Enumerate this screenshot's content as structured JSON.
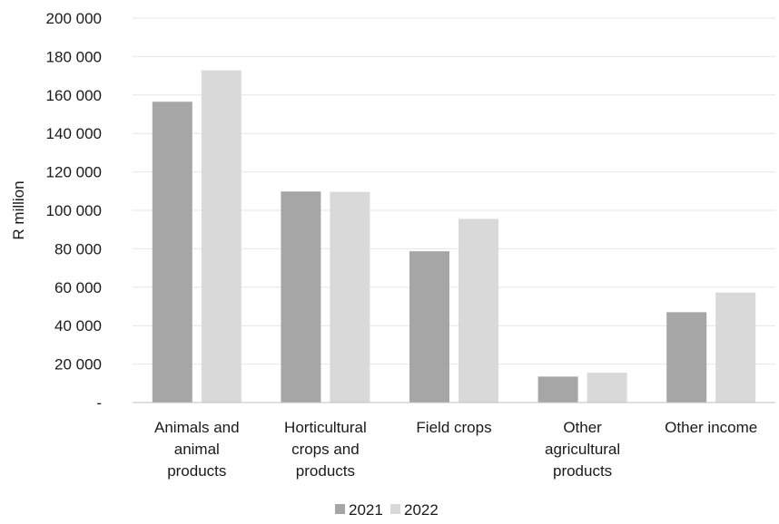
{
  "chart_data": {
    "type": "bar",
    "categories": [
      [
        "Animals and",
        "animal",
        "products"
      ],
      [
        "Horticultural",
        "crops and",
        "products"
      ],
      [
        "Field crops"
      ],
      [
        "Other",
        "agricultural",
        "products"
      ],
      [
        "Other income"
      ]
    ],
    "series": [
      {
        "name": "2021",
        "color": "#a6a6a6",
        "values": [
          156500,
          109800,
          78700,
          13500,
          47000
        ]
      },
      {
        "name": "2022",
        "color": "#d9d9d9",
        "values": [
          172800,
          109600,
          95500,
          15500,
          57200
        ]
      }
    ],
    "ylabel": "R million",
    "ylim": [
      0,
      200000
    ],
    "yticks": [
      0,
      20000,
      40000,
      60000,
      80000,
      100000,
      120000,
      140000,
      160000,
      180000,
      200000
    ],
    "ytick_labels": [
      "-",
      "20 000",
      "40 000",
      "60 000",
      "80 000",
      "100 000",
      "120 000",
      "140 000",
      "160 000",
      "180 000",
      "200 000"
    ],
    "grid": true,
    "legend_position": "bottom"
  }
}
